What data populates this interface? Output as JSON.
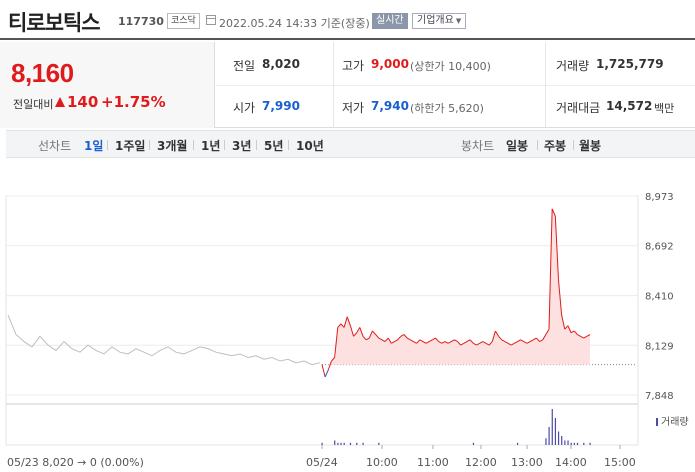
{
  "header": {
    "name": "티로보틱스",
    "code": "117730",
    "market": "코스닥",
    "timestamp": "2022.05.24 14:33 기준(장중)",
    "realtime": "실시간",
    "company_info": "기업개요"
  },
  "quote": {
    "price": "8,160",
    "change_label": "전일대비",
    "change_value": "140",
    "change_percent": "+1.75%",
    "prev_close_label": "전일",
    "prev_close": "8,020",
    "open_label": "시가",
    "open": "7,990",
    "high_label": "고가",
    "high": "9,000",
    "upper_limit": "(상한가 10,400)",
    "low_label": "저가",
    "low": "7,940",
    "lower_limit": "(하한가 5,620)",
    "volume_label": "거래량",
    "volume": "1,725,779",
    "amount_label": "거래대금",
    "amount": "14,572",
    "amount_unit": "백만"
  },
  "tabs": {
    "line_title": "선차트",
    "line": [
      "1일",
      "1주일",
      "3개월",
      "1년",
      "3년",
      "5년",
      "10년"
    ],
    "line_active": "1일",
    "candle_title": "봉차트",
    "candle": [
      "일봉",
      "주봉",
      "월봉"
    ]
  },
  "colors": {
    "up": "#e01b1b",
    "down": "#1a5fd0",
    "prev_day_line": "#bfbfbf",
    "up_fill": "#fde1e1",
    "volume": "#4a4aa8"
  },
  "chart_data": {
    "type": "line",
    "title": "",
    "xlabel": "",
    "ylabel": "",
    "ylim": [
      7848,
      8973
    ],
    "y_ticks": [
      8973,
      8692,
      8410,
      8129,
      7848
    ],
    "baseline": 8020,
    "x_labels": [
      "05/24",
      "10:00",
      "11:00",
      "12:00",
      "13:00",
      "14:00",
      "15:00"
    ],
    "previous_day_label": "05/23  8,020 → 0 (0.00%)",
    "legend": [
      "거래량"
    ],
    "series": [
      {
        "values": [
          8300,
          8190,
          8150,
          8120,
          8180,
          8130,
          8100,
          8150,
          8110,
          8090,
          8130,
          8100,
          8080,
          8120,
          8090,
          8080,
          8110,
          8090,
          8070,
          8100,
          8120,
          8090,
          8080,
          8100,
          8120,
          8110,
          8090,
          8080,
          8070,
          8080,
          8060,
          8070,
          8050,
          8060,
          8040,
          8050,
          8030,
          8040,
          8020,
          8030
        ]
      },
      {
        "values": [
          8020,
          7950,
          7990,
          8040,
          8060,
          8230,
          8250,
          8230,
          8290,
          8240,
          8180,
          8200,
          8230,
          8180,
          8160,
          8170,
          8210,
          8190,
          8170,
          8160,
          8150,
          8170,
          8140,
          8150,
          8160,
          8180,
          8190,
          8170,
          8160,
          8150,
          8140,
          8160,
          8150,
          8140,
          8150,
          8160,
          8170,
          8150,
          8140,
          8150,
          8140,
          8150,
          8160,
          8150,
          8130,
          8140,
          8150,
          8160,
          8140,
          8130,
          8140,
          8150,
          8140,
          8130,
          8150,
          8210,
          8180,
          8160,
          8150,
          8140,
          8130,
          8140,
          8150,
          8160,
          8150,
          8140,
          8150,
          8160,
          8170,
          8150,
          8160,
          8190,
          8220,
          8900,
          8860,
          8500,
          8300,
          8220,
          8240,
          8200,
          8210,
          8190,
          8180,
          8170,
          8180,
          8190
        ]
      }
    ],
    "volume": [
      1,
      0,
      0,
      0,
      2,
      1,
      1,
      1,
      0,
      1,
      0,
      1,
      0,
      1,
      0,
      0,
      0,
      0,
      1,
      0,
      0,
      0,
      0,
      0,
      0,
      0,
      0,
      0,
      0,
      0,
      0,
      0,
      0,
      0,
      0,
      0,
      0,
      0,
      0,
      0,
      0,
      0,
      0,
      0,
      0,
      0,
      0,
      0,
      1,
      0,
      0,
      0,
      0,
      0,
      0,
      0,
      0,
      0,
      0,
      0,
      0,
      0,
      1,
      0,
      0,
      0,
      0,
      0,
      0,
      0,
      0,
      3,
      8,
      16,
      12,
      6,
      4,
      2,
      2,
      1,
      1,
      1,
      0,
      1,
      0,
      1
    ]
  }
}
